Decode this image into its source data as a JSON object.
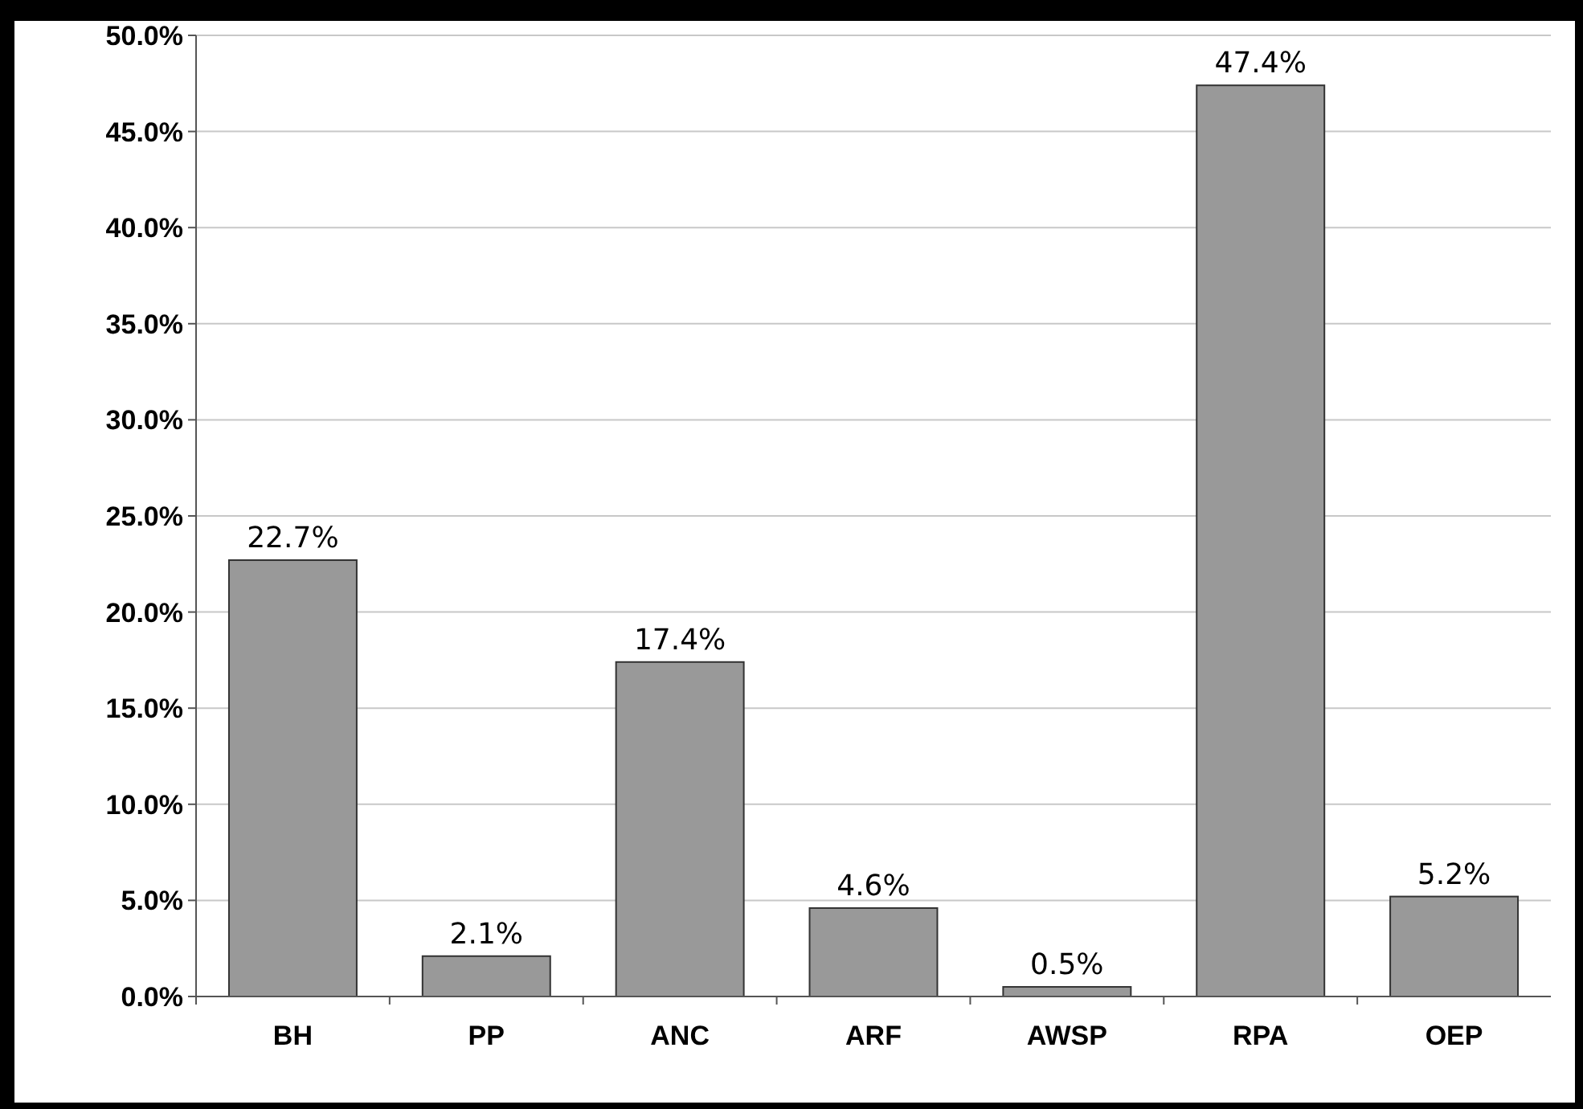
{
  "chart_data": {
    "type": "bar",
    "categories": [
      "BH",
      "PP",
      "ANC",
      "ARF",
      "AWSP",
      "RPA",
      "OEP"
    ],
    "values": [
      22.7,
      2.1,
      17.4,
      4.6,
      0.5,
      47.4,
      5.2
    ],
    "color": "#999999",
    "value_labels": [
      "22.7%",
      "2.1%",
      "17.4%",
      "4.6%",
      "0.5%",
      "47.4%",
      "5.2%"
    ],
    "ylim": [
      0,
      50
    ],
    "yticks": [
      {
        "value": 0,
        "label": "0.0%"
      },
      {
        "value": 5,
        "label": "5.0%"
      },
      {
        "value": 10,
        "label": "10.0%"
      },
      {
        "value": 15,
        "label": "15.0%"
      },
      {
        "value": 20,
        "label": "20.0%"
      },
      {
        "value": 25,
        "label": "25.0%"
      },
      {
        "value": 30,
        "label": "30.0%"
      },
      {
        "value": 35,
        "label": "35.0%"
      },
      {
        "value": 40,
        "label": "40.0%"
      },
      {
        "value": 45,
        "label": "45.0%"
      },
      {
        "value": 50,
        "label": "50.0%"
      }
    ],
    "grid": "y"
  }
}
